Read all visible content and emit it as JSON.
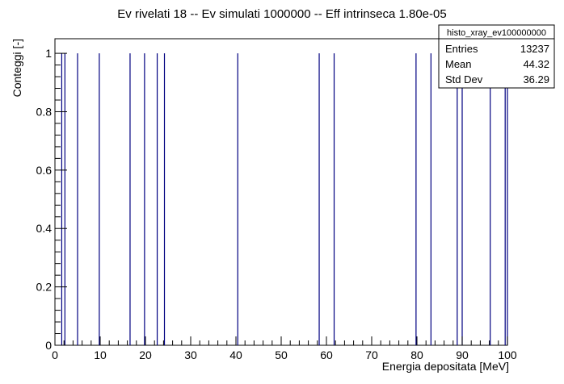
{
  "chart_data": {
    "type": "bar",
    "title": "Ev rivelati 18 -- Ev simulati 1000000 -- Eff intrinseca 1.80e-05",
    "xlabel": "Energia depositata [MeV]",
    "ylabel": "Conteggi [-]",
    "xlim": [
      0,
      100
    ],
    "ylim": [
      0,
      1.05
    ],
    "x_ticks": [
      0,
      10,
      20,
      30,
      40,
      50,
      60,
      70,
      80,
      90,
      100
    ],
    "y_ticks": [
      0,
      0.2,
      0.4,
      0.6,
      0.8,
      1
    ],
    "x_tick_labels": [
      "0",
      "10",
      "20",
      "30",
      "40",
      "50",
      "60",
      "70",
      "80",
      "90",
      "100"
    ],
    "y_tick_labels": [
      "0",
      "0.2",
      "0.4",
      "0.6",
      "0.8",
      "1"
    ],
    "grid": false,
    "bar_color": "#000080",
    "bin_width": 0.1,
    "x": [
      1.5,
      2.2,
      5.0,
      9.8,
      16.6,
      19.8,
      22.6,
      24.2,
      40.4,
      58.4,
      61.7,
      79.8,
      83.1,
      88.9,
      90.0,
      96.2,
      99.5,
      100.0
    ],
    "values": [
      1,
      1,
      1,
      1,
      1,
      1,
      1,
      1,
      1,
      1,
      1,
      1,
      1,
      1,
      1,
      1,
      1,
      1
    ],
    "stats_box": {
      "name": "histo_xray_ev100000000",
      "rows": [
        {
          "label": "Entries",
          "value": "13237"
        },
        {
          "label": "Mean",
          "value": "44.32"
        },
        {
          "label": "Std Dev",
          "value": "36.29"
        }
      ],
      "placement": "top-right"
    }
  }
}
